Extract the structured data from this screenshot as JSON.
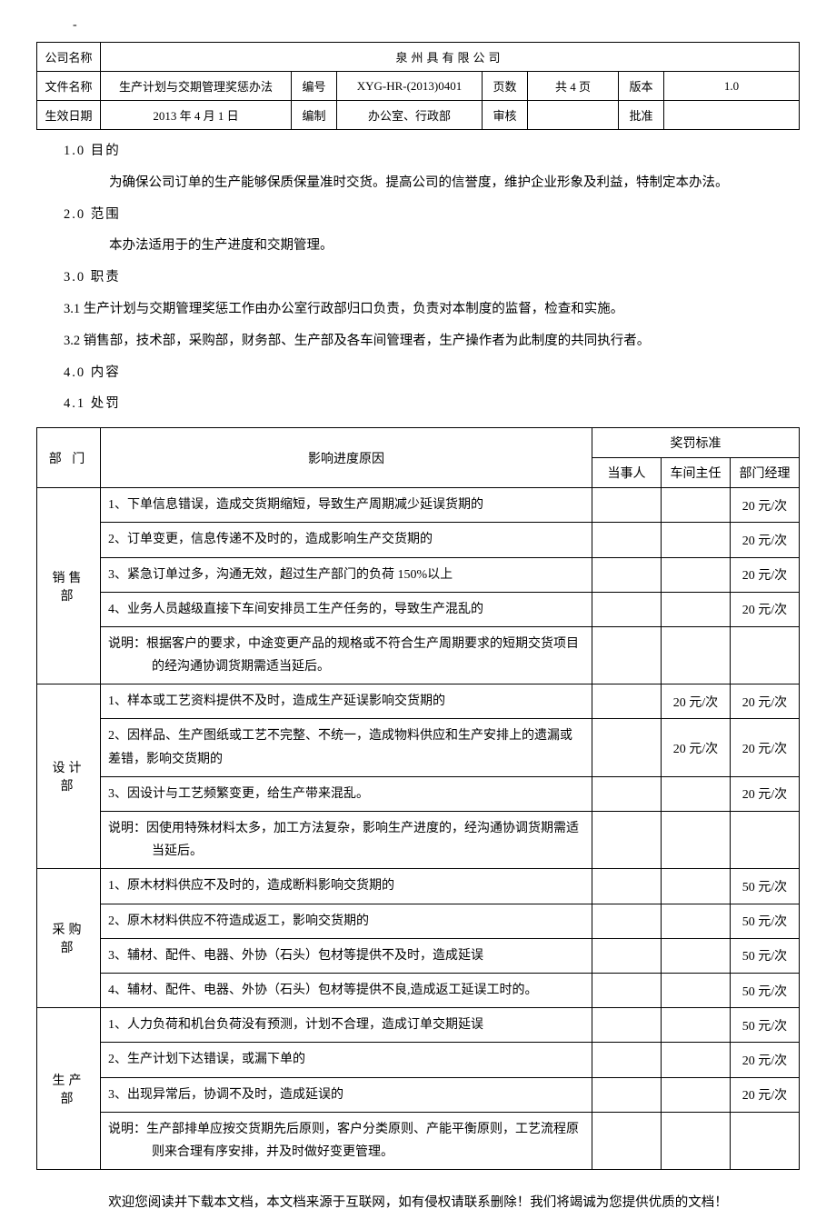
{
  "dash": "-",
  "header": {
    "company_label": "公司名称",
    "company_name": "泉州具有限公司",
    "file_label": "文件名称",
    "file_name": "生产计划与交期管理奖惩办法",
    "doc_no_label": "编号",
    "doc_no": "XYG-HR-(2013)0401",
    "pages_label": "页数",
    "pages": "共 4 页",
    "version_label": "版本",
    "version": "1.0",
    "effective_label": "生效日期",
    "effective_date": "2013 年 4 月 1 日",
    "compiled_label": "编制",
    "compiled_by": "办公室、行政部",
    "review_label": "审核",
    "review_by": "",
    "approve_label": "批准",
    "approve_by": ""
  },
  "sections": {
    "s10": "1.0 目的",
    "s10_body": "为确保公司订单的生产能够保质保量准时交货。提高公司的信誉度，维护企业形象及利益，特制定本办法。",
    "s20": "2.0 范围",
    "s20_body": "本办法适用于的生产进度和交期管理。",
    "s30": "3.0 职责",
    "s31": "3.1 生产计划与交期管理奖惩工作由办公室行政部归口负责，负责对本制度的监督，检查和实施。",
    "s32": "3.2 销售部，技术部，采购部，财务部、生产部及各车间管理者，生产操作者为此制度的共同执行者。",
    "s40": "4.0 内容",
    "s41": "4.1 处罚"
  },
  "table": {
    "col_dept": "部 门",
    "col_reason": "影响进度原因",
    "col_penalty": "奖罚标准",
    "col_person": "当事人",
    "col_director": "车间主任",
    "col_manager": "部门经理",
    "rows": [
      {
        "dept": "销售部",
        "items": [
          {
            "reason": "1、下单信息错误，造成交货期缩短，导致生产周期减少延误货期的",
            "person": "",
            "director": "",
            "manager": "20 元/次"
          },
          {
            "reason": "2、订单变更，信息传递不及时的，造成影响生产交货期的",
            "person": "",
            "director": "",
            "manager": "20 元/次"
          },
          {
            "reason": "3、紧急订单过多，沟通无效，超过生产部门的负荷 150%以上",
            "person": "",
            "director": "",
            "manager": "20 元/次"
          },
          {
            "reason": "4、业务人员越级直接下车间安排员工生产任务的，导致生产混乱的",
            "person": "",
            "director": "",
            "manager": "20 元/次"
          },
          {
            "reason": "说明：根据客户的要求，中途变更产品的规格或不符合生产周期要求的短期交货项目的经沟通协调货期需适当延后。",
            "person": "",
            "director": "",
            "manager": "",
            "note": true
          }
        ]
      },
      {
        "dept": "设计部",
        "items": [
          {
            "reason": "1、样本或工艺资料提供不及时，造成生产延误影响交货期的",
            "person": "",
            "director": "20 元/次",
            "manager": "20 元/次"
          },
          {
            "reason": "2、因样品、生产图纸或工艺不完整、不统一，造成物料供应和生产安排上的遗漏或差错，影响交货期的",
            "person": "",
            "director": "20 元/次",
            "manager": "20 元/次"
          },
          {
            "reason": "3、因设计与工艺频繁变更，给生产带来混乱。",
            "person": "",
            "director": "",
            "manager": "20 元/次"
          },
          {
            "reason": "说明：因使用特殊材料太多，加工方法复杂，影响生产进度的，经沟通协调货期需适当延后。",
            "person": "",
            "director": "",
            "manager": "",
            "note": true
          }
        ]
      },
      {
        "dept": "采购部",
        "items": [
          {
            "reason": "1、原木材料供应不及时的，造成断料影响交货期的",
            "person": "",
            "director": "",
            "manager": "50 元/次"
          },
          {
            "reason": "2、原木材料供应不符造成返工，影响交货期的",
            "person": "",
            "director": "",
            "manager": "50 元/次"
          },
          {
            "reason": "3、辅材、配件、电器、外协（石头）包材等提供不及时，造成延误",
            "person": "",
            "director": "",
            "manager": "50 元/次"
          },
          {
            "reason": "4、辅材、配件、电器、外协（石头）包材等提供不良,造成返工延误工时的。",
            "person": "",
            "director": "",
            "manager": "50 元/次"
          }
        ]
      },
      {
        "dept": "生产部",
        "items": [
          {
            "reason": "1、人力负荷和机台负荷没有预测，计划不合理，造成订单交期延误",
            "person": "",
            "director": "",
            "manager": "50 元/次"
          },
          {
            "reason": "2、生产计划下达错误，或漏下单的",
            "person": "",
            "director": "",
            "manager": "20 元/次"
          },
          {
            "reason": "3、出现异常后，协调不及时，造成延误的",
            "person": "",
            "director": "",
            "manager": "20 元/次"
          },
          {
            "reason": "说明：生产部排单应按交货期先后原则，客户分类原则、产能平衡原则，工艺流程原则来合理有序安排，并及时做好变更管理。",
            "person": "",
            "director": "",
            "manager": "",
            "note": true
          }
        ]
      }
    ]
  },
  "footer": "欢迎您阅读并下载本文档，本文档来源于互联网，如有侵权请联系删除！我们将竭诚为您提供优质的文档！"
}
